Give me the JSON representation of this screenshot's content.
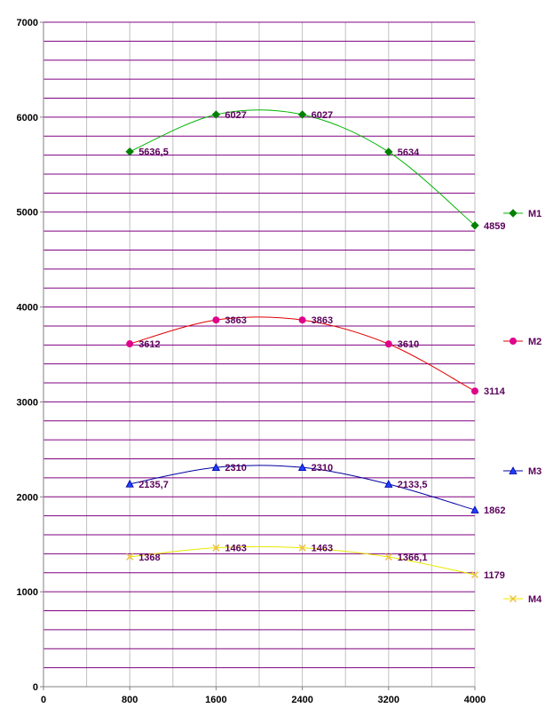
{
  "chart_data": {
    "type": "line",
    "x": [
      800,
      1600,
      2400,
      3200,
      4000
    ],
    "xlim": [
      0,
      4000
    ],
    "ylim": [
      0,
      7000
    ],
    "x_ticks": [
      0,
      800,
      1600,
      2400,
      3200,
      4000
    ],
    "y_ticks": [
      0,
      1000,
      2000,
      3000,
      4000,
      5000,
      6000,
      7000
    ],
    "grid": {
      "horizontal": true,
      "vertical": true,
      "horizontal_color": "#800080",
      "vertical_color": "#c0c0c0"
    },
    "legend_position": "right",
    "series": [
      {
        "name": "M1",
        "values": [
          5636.5,
          6027,
          6027,
          5634,
          4859
        ],
        "labels": [
          "5636,5",
          "6027",
          "6027",
          "5634",
          "4859"
        ],
        "color": "#00b400",
        "marker_color": "#008000",
        "marker": "diamond"
      },
      {
        "name": "M2",
        "values": [
          3612,
          3863,
          3863,
          3610,
          3114
        ],
        "labels": [
          "3612",
          "3863",
          "3863",
          "3610",
          "3114"
        ],
        "color": "#e00000",
        "marker_color": "#e0008c",
        "marker": "circle"
      },
      {
        "name": "M3",
        "values": [
          2135.7,
          2310,
          2310,
          2133.5,
          1862
        ],
        "labels": [
          "2135,7",
          "2310",
          "2310",
          "2133,5",
          "1862"
        ],
        "color": "#0000a0",
        "marker_color": "#1f3fff",
        "marker": "triangle"
      },
      {
        "name": "M4",
        "values": [
          1368,
          1463,
          1463,
          1366.1,
          1179
        ],
        "labels": [
          "1368",
          "1463",
          "1463",
          "1366,1",
          "1179"
        ],
        "color": "#e8e800",
        "marker_color": "#f0c040",
        "marker": "x"
      }
    ]
  }
}
